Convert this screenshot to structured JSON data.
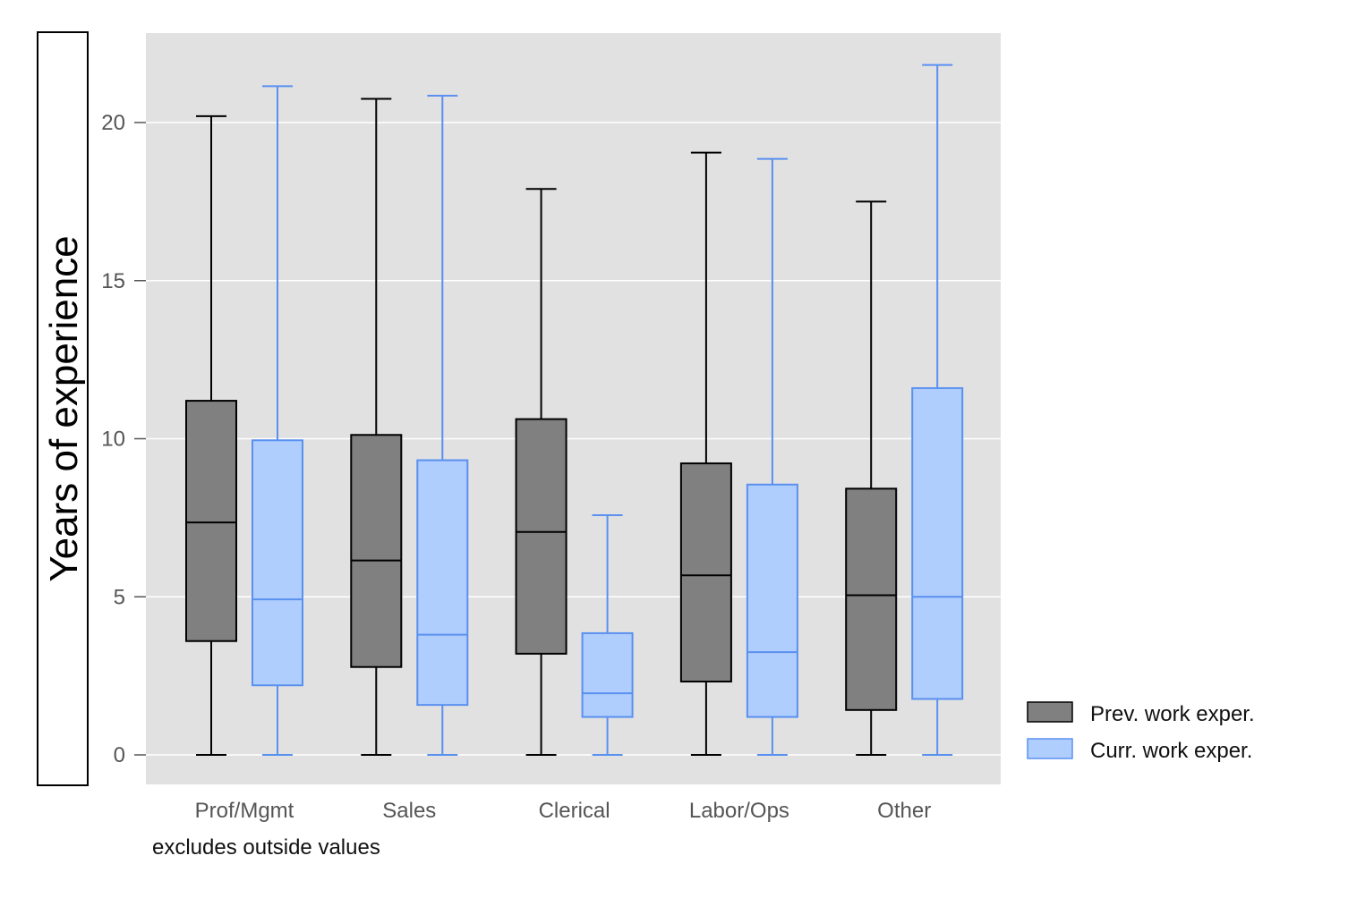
{
  "chart_data": {
    "type": "box",
    "categories": [
      "Prof/Mgmt",
      "Sales",
      "Clerical",
      "Labor/Ops",
      "Other"
    ],
    "ylabel": "Years of experience",
    "xlabel": "",
    "ylim": [
      -0.9,
      22.8
    ],
    "yticks": [
      0,
      5,
      10,
      15,
      20
    ],
    "grid": true,
    "legend_position": "right",
    "note": "excludes outside values",
    "series": [
      {
        "name": "Prev. work exper.",
        "fill": "#808080",
        "stroke": "#000000",
        "boxes": [
          {
            "lower_whisker": 0,
            "q1": 3.6,
            "median": 7.35,
            "q3": 11.2,
            "upper_whisker": 20.2
          },
          {
            "lower_whisker": 0,
            "q1": 2.78,
            "median": 6.15,
            "q3": 10.12,
            "upper_whisker": 20.75
          },
          {
            "lower_whisker": 0,
            "q1": 3.2,
            "median": 7.05,
            "q3": 10.62,
            "upper_whisker": 17.9
          },
          {
            "lower_whisker": 0,
            "q1": 2.32,
            "median": 5.68,
            "q3": 9.22,
            "upper_whisker": 19.05
          },
          {
            "lower_whisker": 0,
            "q1": 1.42,
            "median": 5.05,
            "q3": 8.42,
            "upper_whisker": 17.5
          }
        ]
      },
      {
        "name": "Curr. work exper.",
        "fill": "#B0CEFD",
        "stroke": "#5A90F0",
        "boxes": [
          {
            "lower_whisker": 0,
            "q1": 2.2,
            "median": 4.92,
            "q3": 9.95,
            "upper_whisker": 21.15
          },
          {
            "lower_whisker": 0,
            "q1": 1.58,
            "median": 3.8,
            "q3": 9.32,
            "upper_whisker": 20.85
          },
          {
            "lower_whisker": 0,
            "q1": 1.2,
            "median": 1.95,
            "q3": 3.85,
            "upper_whisker": 7.58
          },
          {
            "lower_whisker": 0,
            "q1": 1.2,
            "median": 3.25,
            "q3": 8.55,
            "upper_whisker": 18.85
          },
          {
            "lower_whisker": 0,
            "q1": 1.77,
            "median": 5.0,
            "q3": 11.6,
            "upper_whisker": 21.82
          }
        ]
      }
    ]
  }
}
